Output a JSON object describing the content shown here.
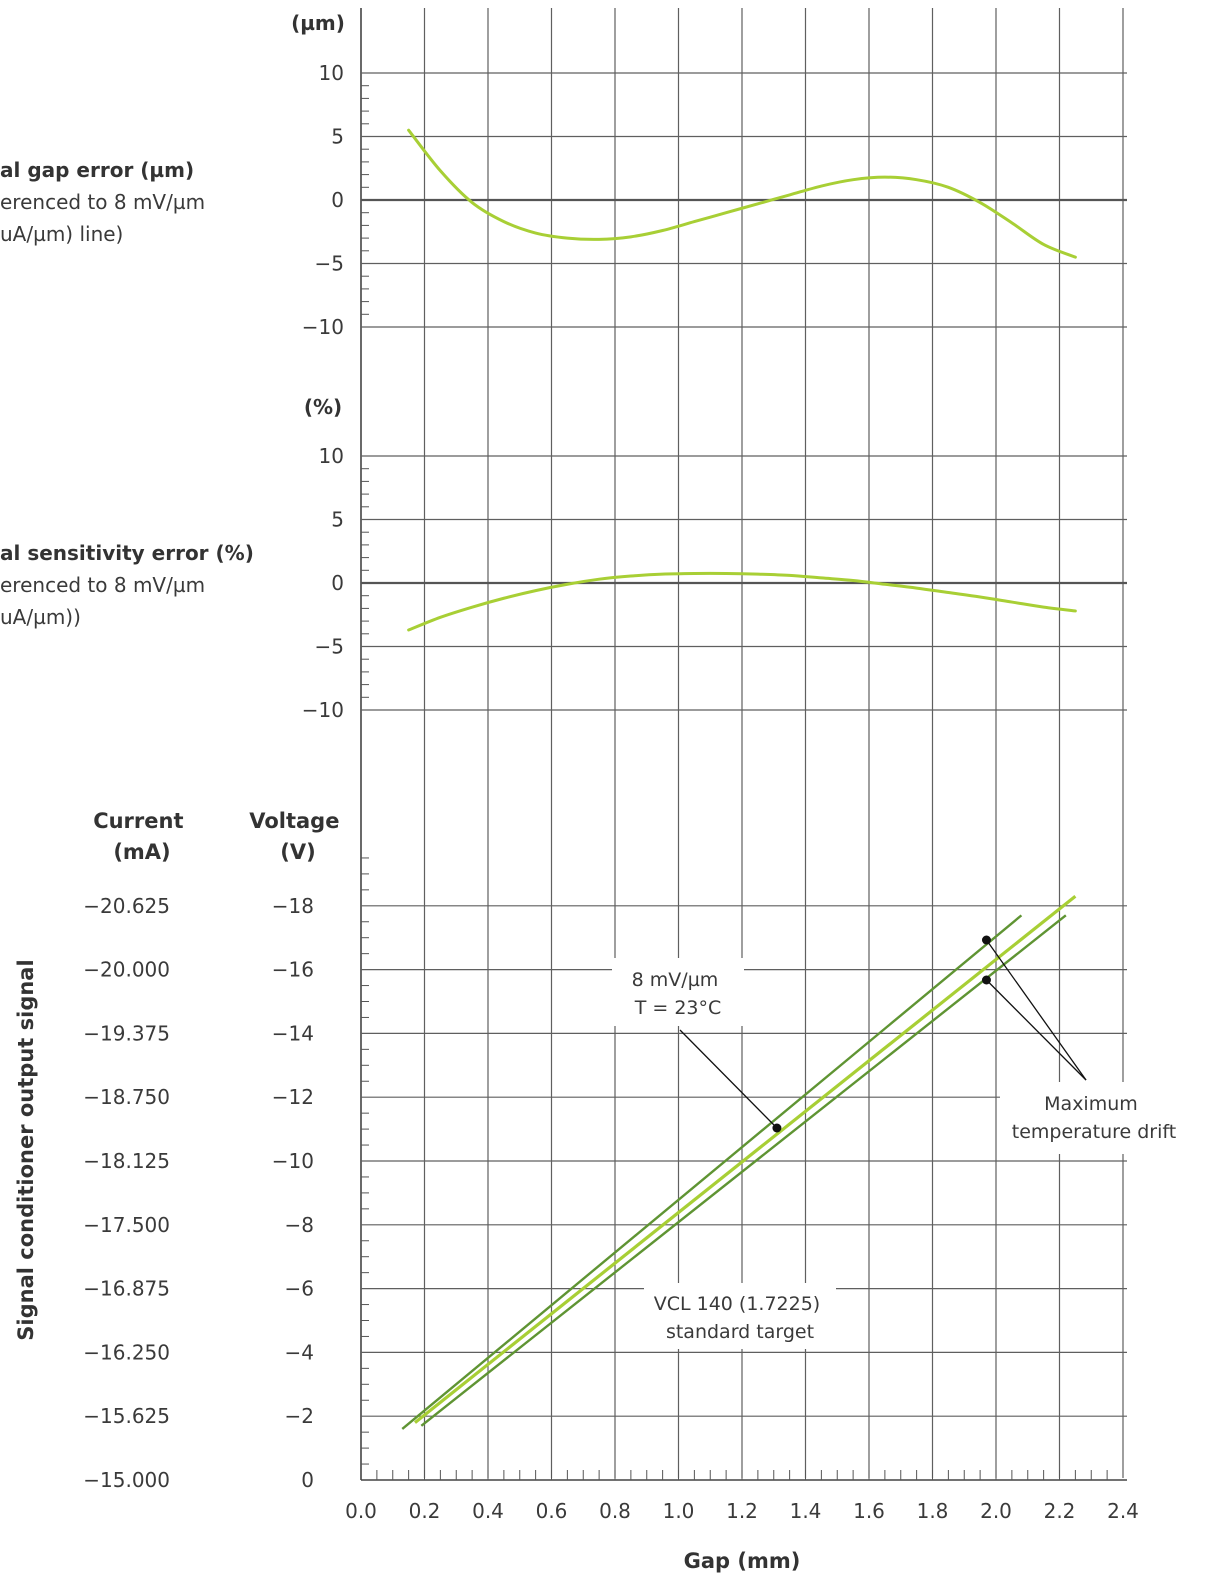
{
  "chart_data": {
    "type": "line",
    "colors": {
      "curve": "#a8cf35",
      "drift": "#5f9433",
      "grid": "#5f5f5f",
      "text": "#3a3a3a"
    },
    "x_axis": {
      "label": "Gap (mm)",
      "range": [
        0.0,
        2.4
      ],
      "ticks": [
        "0.0",
        "0.2",
        "0.4",
        "0.6",
        "0.8",
        "1.0",
        "1.2",
        "1.4",
        "1.6",
        "1.8",
        "2.0",
        "2.2",
        "2.4"
      ]
    },
    "top_panel": {
      "unit_label": "(µm)",
      "title": "al gap error (µm)",
      "subtitle_1": "erenced to 8 mV/µm",
      "subtitle_2": "uA/µm) line)",
      "ylim": [
        -10,
        10
      ],
      "ticks": [
        "10",
        "5",
        "0",
        "−5",
        "−10"
      ],
      "series": [
        {
          "x": [
            0.15,
            0.25,
            0.35,
            0.45,
            0.55,
            0.65,
            0.75,
            0.85,
            0.95,
            1.05,
            1.15,
            1.25,
            1.35,
            1.45,
            1.55,
            1.65,
            1.75,
            1.85,
            1.95,
            2.05,
            2.15,
            2.25
          ],
          "y": [
            5.5,
            2.3,
            -0.2,
            -1.7,
            -2.6,
            -3.0,
            -3.1,
            -2.9,
            -2.4,
            -1.7,
            -1.0,
            -0.3,
            0.4,
            1.1,
            1.6,
            1.8,
            1.6,
            1.0,
            -0.2,
            -1.8,
            -3.5,
            -4.5
          ]
        }
      ]
    },
    "middle_panel": {
      "unit_label": "(%)",
      "title": "al sensitivity error (%)",
      "subtitle_1": "erenced to 8 mV/µm",
      "subtitle_2": "uA/µm))",
      "ylim": [
        -10,
        10
      ],
      "ticks": [
        "10",
        "5",
        "0",
        "−5",
        "−10"
      ],
      "series": [
        {
          "x": [
            0.15,
            0.25,
            0.35,
            0.45,
            0.55,
            0.65,
            0.75,
            0.85,
            0.95,
            1.05,
            1.15,
            1.25,
            1.35,
            1.45,
            1.55,
            1.65,
            1.75,
            1.85,
            1.95,
            2.05,
            2.15,
            2.25
          ],
          "y": [
            -3.7,
            -2.7,
            -1.9,
            -1.2,
            -0.6,
            -0.1,
            0.3,
            0.55,
            0.7,
            0.75,
            0.75,
            0.7,
            0.6,
            0.4,
            0.2,
            -0.1,
            -0.4,
            -0.75,
            -1.1,
            -1.5,
            -1.9,
            -2.2
          ]
        }
      ]
    },
    "bottom_panel": {
      "y_title": "Signal conditioner output signal",
      "current_header": "Current\n(mA)",
      "voltage_header": "Voltage\n(V)",
      "voltage_ticks": [
        "−18",
        "−16",
        "−14",
        "−12",
        "−10",
        "−8",
        "−6",
        "−4",
        "−2",
        "0"
      ],
      "voltage_values": [
        18,
        16,
        14,
        12,
        10,
        8,
        6,
        4,
        2,
        0
      ],
      "current_ticks": [
        "−20.625",
        "−20.000",
        "−19.375",
        "−18.750",
        "−18.125",
        "−17.500",
        "−16.875",
        "−16.250",
        "−15.625",
        "−15.000"
      ],
      "series": [
        {
          "name": "8 mV/µm T = 23°C",
          "x": [
            0.17,
            2.25
          ],
          "y": [
            -1.8,
            -18.3
          ]
        },
        {
          "name": "drift-upper",
          "x": [
            0.13,
            2.08
          ],
          "y": [
            -1.6,
            -17.7
          ]
        },
        {
          "name": "drift-lower",
          "x": [
            0.19,
            2.22
          ],
          "y": [
            -1.7,
            -17.7
          ]
        }
      ],
      "annotations": {
        "sensitivity": [
          "8 mV/µm",
          "T = 23°C"
        ],
        "target": [
          "VCL 140 (1.7225)",
          "standard target"
        ],
        "drift": [
          "Maximum",
          "temperature drift"
        ]
      }
    }
  }
}
